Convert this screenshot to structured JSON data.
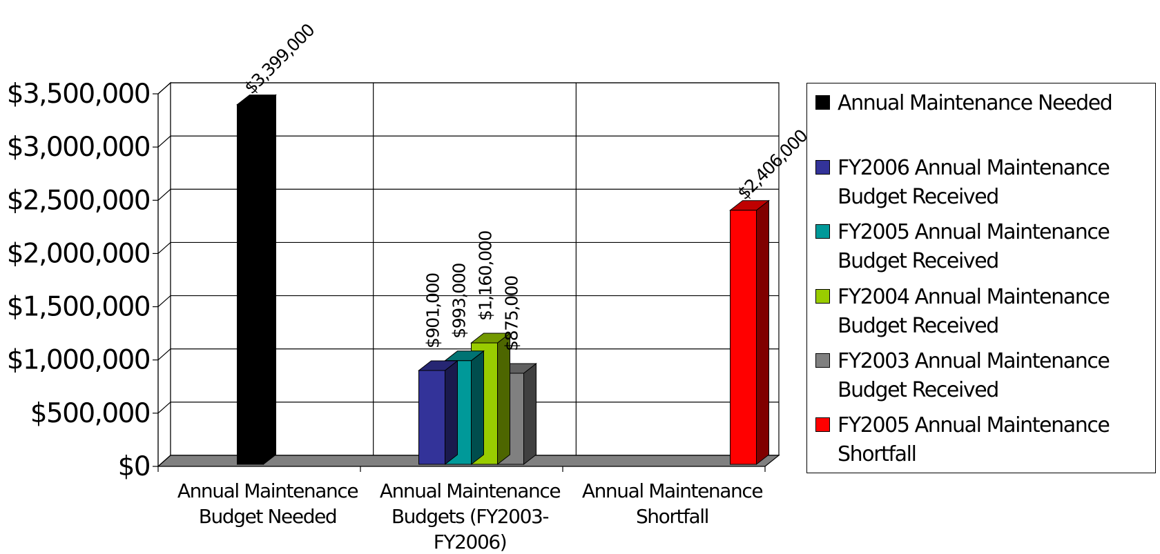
{
  "chart_data": {
    "type": "bar",
    "categories": [
      "Annual Maintenance Budget Needed",
      "Annual Maintenance Budgets (FY2003-FY2006)",
      "Annual Maintenance Shortfall"
    ],
    "category_lines": [
      [
        "Annual Maintenance",
        "Budget Needed"
      ],
      [
        "Annual Maintenance",
        "Budgets (FY2003-",
        "FY2006)"
      ],
      [
        "Annual Maintenance",
        "Shortfall"
      ]
    ],
    "series": [
      {
        "name": "Annual Maintenance Needed",
        "color": "#000000",
        "values": [
          3399000,
          null,
          null
        ]
      },
      {
        "name": "FY2006 Annual Maintenance Budget Received",
        "color": "#333399",
        "values": [
          null,
          901000,
          null
        ]
      },
      {
        "name": "FY2005 Annual Maintenance Budget Received",
        "color": "#009999",
        "values": [
          null,
          993000,
          null
        ]
      },
      {
        "name": "FY2004 Annual Maintenance Budget Received",
        "color": "#99cc00",
        "values": [
          null,
          1160000,
          null
        ]
      },
      {
        "name": "FY2003 Annual Maintenance Budget Received",
        "color": "#808080",
        "values": [
          null,
          875000,
          null
        ]
      },
      {
        "name": "FY2005 Annual Maintenance Shortfall",
        "color": "#ff0000",
        "values": [
          null,
          null,
          2406000
        ]
      }
    ],
    "data_labels": [
      "$3,399,000",
      "$901,000",
      "$993,000",
      "$1,160,000",
      "$875,000",
      "$2,406,000"
    ],
    "yticks": [
      "$0",
      "$500,000",
      "$1,000,000",
      "$1,500,000",
      "$2,000,000",
      "$2,500,000",
      "$3,000,000",
      "$3,500,000"
    ],
    "ylim": [
      0,
      3500000
    ],
    "title": "",
    "xlabel": "",
    "ylabel": "",
    "grid": true,
    "legend_position": "right",
    "style": "3d-clustered-column"
  },
  "legend": {
    "items": [
      {
        "label": "Annual Maintenance Needed",
        "color": "#000000"
      },
      {
        "label": "FY2006 Annual Maintenance Budget Received",
        "color": "#333399"
      },
      {
        "label": "FY2005 Annual Maintenance Budget Received",
        "color": "#009999"
      },
      {
        "label": "FY2004 Annual Maintenance Budget Received",
        "color": "#99cc00"
      },
      {
        "label": "FY2003 Annual Maintenance Budget Received",
        "color": "#808080"
      },
      {
        "label": "FY2005 Annual Maintenance Shortfall",
        "color": "#ff0000"
      }
    ]
  }
}
